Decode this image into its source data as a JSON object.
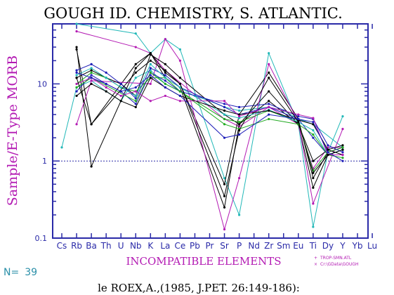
{
  "chart_data": {
    "type": "line",
    "title": "GOUGH ID. CHEMISTRY, S. ATLANTIC.",
    "ylabel": "Sample/E-Type MORB",
    "xlabel": "INCOMPATIBLE ELEMENTS",
    "y_scale": "log",
    "ylim": [
      0.1,
      60
    ],
    "y_ticks": [
      {
        "label": "0.1",
        "value": 0.1
      },
      {
        "label": "1",
        "value": 1
      },
      {
        "label": "10",
        "value": 10
      }
    ],
    "reference_line": 1,
    "categories": [
      "Cs",
      "Rb",
      "Ba",
      "Th",
      "U",
      "Nb",
      "K",
      "La",
      "Ce",
      "Pb",
      "Pr",
      "Sr",
      "P",
      "Nd",
      "Zr",
      "Sm",
      "Eu",
      "Ti",
      "Dy",
      "Y",
      "Yb",
      "Lu"
    ],
    "sample_count_label": "N=",
    "sample_count": "39",
    "citation": "le ROEX,A.,(1985, J.PET. 26:149-186):",
    "legend": [
      {
        "symbol": "+",
        "label": "TROP-SMN.ATL",
        "color": "#b31ab3"
      },
      {
        "symbol": "×",
        "label": "Cr:\\GData\\GOUGH",
        "color": "#b31ab3"
      }
    ],
    "series": [
      {
        "color": "#b31ab3",
        "values": [
          null,
          48,
          null,
          null,
          null,
          30,
          25,
          15,
          null,
          null,
          null,
          3.5,
          2.8,
          null,
          5,
          null,
          3,
          0.8,
          1.5,
          1.5,
          null,
          null
        ]
      },
      {
        "color": "#22b8b8",
        "values": [
          null,
          60,
          null,
          null,
          null,
          45,
          25,
          38,
          28,
          null,
          null,
          0.6,
          0.2,
          null,
          25,
          null,
          3,
          0.14,
          1.3,
          3.8,
          null,
          null
        ]
      },
      {
        "color": "#22b8b8",
        "values": [
          1.5,
          9,
          11,
          8,
          6,
          12,
          15,
          10,
          8,
          7,
          6,
          5,
          4.5,
          null,
          5,
          4.5,
          3.5,
          3,
          null,
          1.5,
          null,
          null
        ]
      },
      {
        "color": "#000000",
        "values": [
          null,
          30,
          0.85,
          null,
          null,
          16,
          25,
          12,
          9,
          null,
          null,
          0.25,
          3,
          null,
          8,
          null,
          3,
          0.45,
          1.2,
          1.4,
          null,
          null
        ]
      },
      {
        "color": "#000000",
        "values": [
          null,
          28,
          3,
          null,
          null,
          18,
          25,
          14,
          10,
          null,
          null,
          0.5,
          4,
          null,
          14,
          null,
          3.5,
          0.6,
          1.3,
          1.5,
          null,
          null
        ]
      },
      {
        "color": "#b31ab3",
        "values": [
          null,
          3,
          11,
          null,
          null,
          null,
          10,
          38,
          20,
          null,
          null,
          0.13,
          0.6,
          null,
          18,
          null,
          3.2,
          0.28,
          null,
          2.6,
          null,
          null
        ]
      },
      {
        "color": "#000000",
        "values": [
          null,
          12,
          15,
          12,
          10,
          7,
          24,
          18,
          12,
          null,
          null,
          4,
          3,
          null,
          6,
          null,
          3,
          1,
          1.4,
          1.6,
          null,
          null
        ]
      },
      {
        "color": "#22aa22",
        "values": [
          null,
          10,
          14,
          12,
          9,
          8,
          12,
          12,
          8,
          null,
          null,
          3.5,
          3.2,
          null,
          4.5,
          null,
          3.2,
          0.75,
          1.3,
          1.5,
          null,
          null
        ]
      },
      {
        "color": "#1d1db8",
        "values": [
          null,
          15,
          18,
          14,
          10,
          6.5,
          16,
          13,
          9,
          null,
          null,
          5,
          4,
          null,
          5,
          null,
          3.5,
          2,
          1.2,
          1.4,
          null,
          null
        ]
      },
      {
        "color": "#22b8b8",
        "values": [
          null,
          13,
          16,
          12,
          9,
          7,
          18,
          12,
          9,
          null,
          null,
          4,
          3.6,
          null,
          4.6,
          null,
          3.2,
          2.5,
          1.2,
          1.4,
          null,
          null
        ]
      },
      {
        "color": "#1d1db8",
        "values": [
          null,
          8,
          13,
          10,
          8,
          5.5,
          14,
          11,
          8,
          null,
          null,
          5.5,
          5,
          null,
          5.5,
          null,
          3.8,
          3.5,
          1.6,
          1.3,
          null,
          null
        ]
      },
      {
        "color": "#000000",
        "values": [
          null,
          7,
          10,
          8,
          6,
          5,
          12,
          9,
          7,
          null,
          null,
          4.5,
          4,
          null,
          4.5,
          null,
          3.4,
          3,
          1.4,
          1.2,
          null,
          null
        ]
      },
      {
        "color": "#22aa22",
        "values": [
          null,
          9,
          12,
          null,
          null,
          6,
          14,
          10,
          8,
          null,
          null,
          3,
          2.6,
          null,
          3.5,
          null,
          3,
          2.2,
          1.2,
          1.1,
          null,
          null
        ]
      },
      {
        "color": "#b31ab3",
        "values": [
          null,
          10,
          12,
          9,
          7,
          8,
          6,
          7,
          6,
          null,
          null,
          6,
          3.8,
          null,
          5,
          null,
          4,
          3.6,
          1.2,
          1.2,
          null,
          null
        ]
      },
      {
        "color": "#000000",
        "values": [
          null,
          12,
          3,
          null,
          null,
          14,
          20,
          15,
          10,
          null,
          null,
          0.35,
          2.5,
          null,
          12,
          null,
          3.2,
          0.7,
          1.2,
          1.4,
          null,
          null
        ]
      },
      {
        "color": "#1d1db8",
        "values": [
          null,
          14,
          12,
          10,
          8,
          9,
          13,
          9,
          7,
          null,
          null,
          2,
          2.2,
          null,
          4,
          null,
          3.5,
          3.2,
          1.3,
          1,
          null,
          null
        ]
      }
    ]
  }
}
